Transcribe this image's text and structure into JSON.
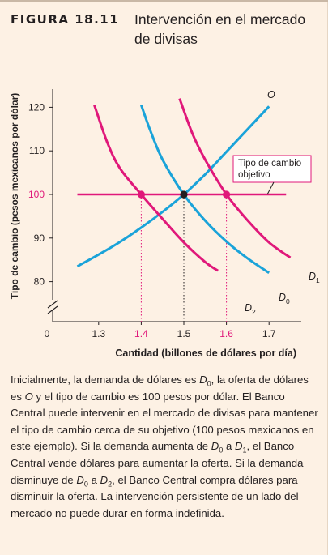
{
  "figure": {
    "label": "FIGURA 18.11",
    "title": "Intervención en el mercado de divisas"
  },
  "chart_data": {
    "type": "line",
    "xlabel": "Cantidad (billones de dólares por día)",
    "ylabel": "Tipo de cambio (pesos mexicanos por dólar)",
    "xlim": [
      1.2,
      1.75
    ],
    "ylim": [
      75,
      125
    ],
    "x_ticks": [
      "0",
      "1.3",
      "1.4",
      "1.5",
      "1.6",
      "1.7"
    ],
    "y_ticks": [
      "80",
      "90",
      "100",
      "110",
      "120"
    ],
    "highlight_x_ticks": [
      "1.4",
      "1.6"
    ],
    "highlight_y_ticks": [
      "100"
    ],
    "series": [
      {
        "name": "O",
        "color": "#1aa3d9",
        "x": [
          1.25,
          1.3,
          1.35,
          1.4,
          1.45,
          1.5,
          1.55,
          1.6,
          1.65,
          1.7
        ],
        "y": [
          83.5,
          86.2,
          89.1,
          92.4,
          96.0,
          100.0,
          104.6,
          109.8,
          115.0,
          120.2
        ]
      },
      {
        "name": "D0",
        "color": "#1aa3d9",
        "x": [
          1.4,
          1.42,
          1.45,
          1.5,
          1.55,
          1.6,
          1.65,
          1.7
        ],
        "y": [
          120.5,
          115.0,
          108.0,
          100.0,
          94.0,
          89.2,
          85.3,
          82.0
        ]
      },
      {
        "name": "D1",
        "color": "#e0187a",
        "x": [
          1.49,
          1.52,
          1.55,
          1.6,
          1.65,
          1.7,
          1.75
        ],
        "y": [
          122.0,
          114.0,
          108.0,
          100.0,
          94.0,
          89.0,
          85.5
        ]
      },
      {
        "name": "D2",
        "color": "#e0187a",
        "x": [
          1.29,
          1.32,
          1.35,
          1.4,
          1.45,
          1.5,
          1.55,
          1.58
        ],
        "y": [
          120.5,
          112.0,
          106.0,
          100.0,
          94.4,
          89.0,
          84.5,
          82.5
        ]
      }
    ],
    "target_rate": {
      "label": "Tipo de cambio objetivo",
      "value": 100,
      "x_from": 1.25,
      "x_to": 1.74,
      "color": "#e0187a"
    },
    "points": [
      {
        "x": 1.4,
        "y": 100,
        "color": "#e0187a"
      },
      {
        "x": 1.5,
        "y": 100,
        "color": "#231f20"
      },
      {
        "x": 1.6,
        "y": 100,
        "color": "#e0187a"
      }
    ],
    "curve_labels": [
      {
        "text": "O",
        "sub": ""
      },
      {
        "text": "D",
        "sub": "0"
      },
      {
        "text": "D",
        "sub": "1"
      },
      {
        "text": "D",
        "sub": "2"
      }
    ]
  },
  "caption": {
    "p1": "Inicialmente, la demanda de dólares es ",
    "d0a": "D",
    "d0a_sub": "0",
    "p2": ", la oferta de dólares es ",
    "o": "O",
    "p3": " y el tipo de cambio es 100 pesos por dólar. El Banco Central puede intervenir en el mercado de divisas para mantener el tipo de cambio cerca de su objetivo (100 pesos mexicanos en este ejemplo). Si la demanda aumenta de ",
    "d0b": "D",
    "d0b_sub": "0",
    "p4": " a ",
    "d1": "D",
    "d1_sub": "1",
    "p5": ", el Banco Central vende dólares para aumentar la oferta. Si la demanda disminuye de ",
    "d0c": "D",
    "d0c_sub": "0",
    "p6": " a ",
    "d2": "D",
    "d2_sub": "2",
    "p7": ", el Banco Central compra dólares para disminuir la oferta. La intervención persistente de un lado del mercado no puede durar en forma indefinida."
  }
}
